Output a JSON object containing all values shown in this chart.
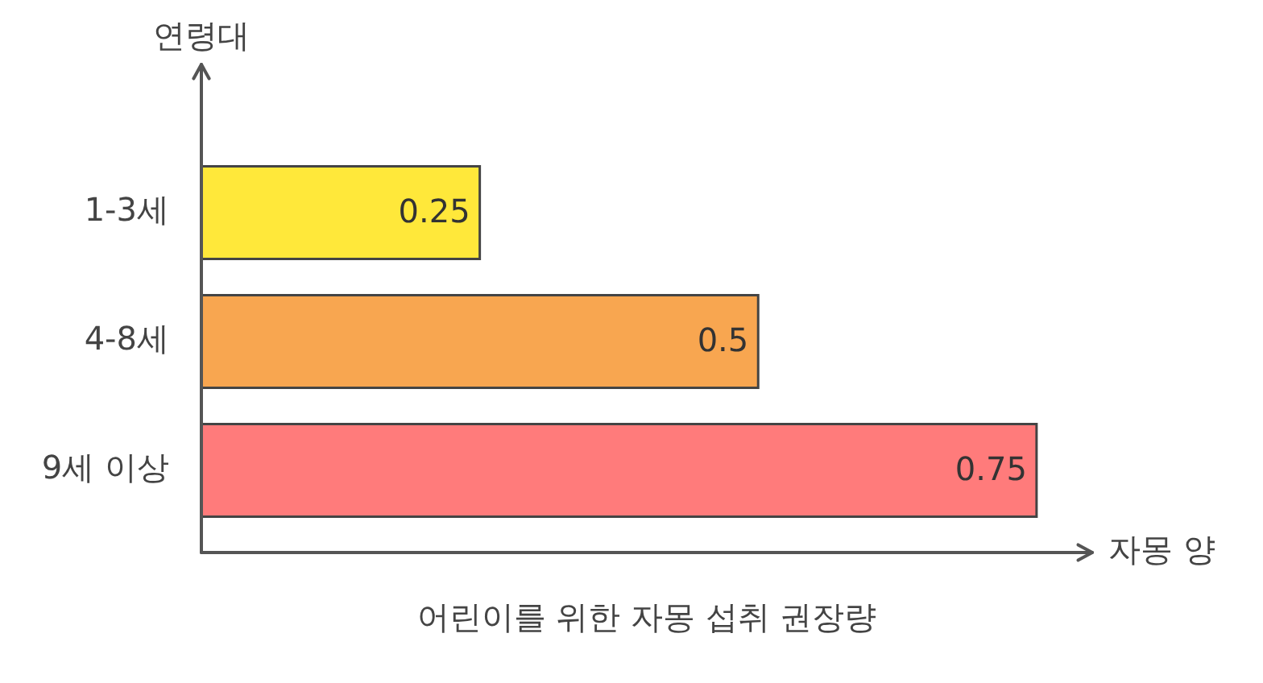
{
  "chart_data": {
    "type": "bar",
    "orientation": "horizontal",
    "title": "어린이를 위한 자몽 섭취 권장량",
    "xlabel": "자몽 양",
    "ylabel": "연령대",
    "categories": [
      "1-3세",
      "4-8세",
      "9세 이상"
    ],
    "values": [
      0.25,
      0.5,
      0.75
    ],
    "colors": [
      "#ffe83a",
      "#f8a650",
      "#ff7b7b"
    ],
    "xlim": [
      0,
      0.8
    ],
    "tick_labels": "y",
    "data_labels": true,
    "grid": false,
    "legend": false
  }
}
